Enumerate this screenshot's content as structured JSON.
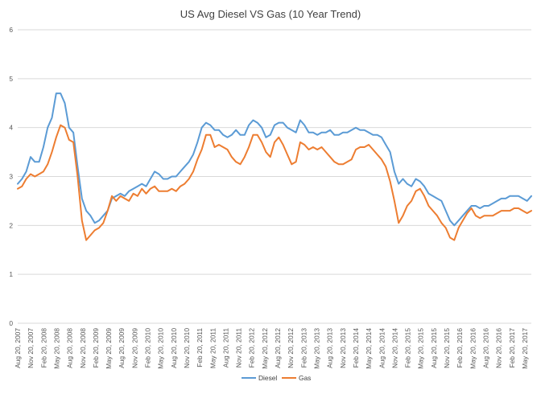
{
  "chart_data": {
    "type": "line",
    "title": "US Avg Diesel VS Gas (10 Year Trend)",
    "xlabel": "",
    "ylabel": "",
    "ylim": [
      0,
      6
    ],
    "yticks": [
      0,
      1,
      2,
      3,
      4,
      5,
      6
    ],
    "grid": "horizontal",
    "legend_position": "bottom",
    "x_tick_labels": [
      "Aug 20, 2007",
      "Nov 20, 2007",
      "Feb 20, 2008",
      "May 20, 2008",
      "Aug 20, 2008",
      "Nov 20, 2008",
      "Feb 20, 2009",
      "May 20, 2009",
      "Aug 20, 2009",
      "Nov 20, 2009",
      "Feb 20, 2010",
      "May 20, 2010",
      "Aug 20, 2010",
      "Nov 20, 2010",
      "Feb 20, 2011",
      "May 20, 2011",
      "Aug 20, 2011",
      "Nov 20, 2011",
      "Feb 20, 2012",
      "May 20, 2012",
      "Aug 20, 2012",
      "Nov 20, 2012",
      "Feb 20, 2013",
      "May 20, 2013",
      "Aug 20, 2013",
      "Nov 20, 2013",
      "Feb 20, 2014",
      "May 20, 2014",
      "Aug 20, 2014",
      "Nov 20, 2014",
      "Feb 20, 2015",
      "May 20, 2015",
      "Aug 20, 2015",
      "Nov 20, 2015",
      "Feb 20, 2016",
      "May 20, 2016",
      "Aug 20, 2016",
      "Nov 20, 2016",
      "Feb 20, 2017",
      "May 20, 2017"
    ],
    "x": [
      "2007-08",
      "2007-09",
      "2007-10",
      "2007-11",
      "2007-12",
      "2008-01",
      "2008-02",
      "2008-03",
      "2008-04",
      "2008-05",
      "2008-06",
      "2008-07",
      "2008-08",
      "2008-09",
      "2008-10",
      "2008-11",
      "2008-12",
      "2009-01",
      "2009-02",
      "2009-03",
      "2009-04",
      "2009-05",
      "2009-06",
      "2009-07",
      "2009-08",
      "2009-09",
      "2009-10",
      "2009-11",
      "2009-12",
      "2010-01",
      "2010-02",
      "2010-03",
      "2010-04",
      "2010-05",
      "2010-06",
      "2010-07",
      "2010-08",
      "2010-09",
      "2010-10",
      "2010-11",
      "2010-12",
      "2011-01",
      "2011-02",
      "2011-03",
      "2011-04",
      "2011-05",
      "2011-06",
      "2011-07",
      "2011-08",
      "2011-09",
      "2011-10",
      "2011-11",
      "2011-12",
      "2012-01",
      "2012-02",
      "2012-03",
      "2012-04",
      "2012-05",
      "2012-06",
      "2012-07",
      "2012-08",
      "2012-09",
      "2012-10",
      "2012-11",
      "2012-12",
      "2013-01",
      "2013-02",
      "2013-03",
      "2013-04",
      "2013-05",
      "2013-06",
      "2013-07",
      "2013-08",
      "2013-09",
      "2013-10",
      "2013-11",
      "2013-12",
      "2014-01",
      "2014-02",
      "2014-03",
      "2014-04",
      "2014-05",
      "2014-06",
      "2014-07",
      "2014-08",
      "2014-09",
      "2014-10",
      "2014-11",
      "2014-12",
      "2015-01",
      "2015-02",
      "2015-03",
      "2015-04",
      "2015-05",
      "2015-06",
      "2015-07",
      "2015-08",
      "2015-09",
      "2015-10",
      "2015-11",
      "2015-12",
      "2016-01",
      "2016-02",
      "2016-03",
      "2016-04",
      "2016-05",
      "2016-06",
      "2016-07",
      "2016-08",
      "2016-09",
      "2016-10",
      "2016-11",
      "2016-12",
      "2017-01",
      "2017-02",
      "2017-03",
      "2017-04",
      "2017-05",
      "2017-06",
      "2017-07",
      "2017-08"
    ],
    "series": [
      {
        "name": "Diesel",
        "color": "#5B9BD5",
        "values": [
          2.85,
          2.95,
          3.1,
          3.4,
          3.3,
          3.3,
          3.6,
          4.0,
          4.2,
          4.7,
          4.7,
          4.5,
          4.0,
          3.9,
          3.2,
          2.55,
          2.3,
          2.2,
          2.05,
          2.1,
          2.2,
          2.3,
          2.55,
          2.6,
          2.65,
          2.6,
          2.7,
          2.75,
          2.8,
          2.85,
          2.8,
          2.95,
          3.1,
          3.05,
          2.95,
          2.95,
          3.0,
          3.0,
          3.1,
          3.2,
          3.3,
          3.45,
          3.7,
          4.0,
          4.1,
          4.05,
          3.95,
          3.95,
          3.85,
          3.8,
          3.85,
          3.95,
          3.85,
          3.85,
          4.05,
          4.15,
          4.1,
          4.0,
          3.8,
          3.85,
          4.05,
          4.1,
          4.1,
          4.0,
          3.95,
          3.9,
          4.15,
          4.05,
          3.9,
          3.9,
          3.85,
          3.9,
          3.9,
          3.95,
          3.85,
          3.85,
          3.9,
          3.9,
          3.95,
          4.0,
          3.95,
          3.95,
          3.9,
          3.85,
          3.85,
          3.8,
          3.65,
          3.5,
          3.1,
          2.85,
          2.95,
          2.85,
          2.8,
          2.95,
          2.9,
          2.8,
          2.65,
          2.6,
          2.55,
          2.5,
          2.3,
          2.1,
          2.0,
          2.1,
          2.2,
          2.3,
          2.4,
          2.4,
          2.35,
          2.4,
          2.4,
          2.45,
          2.5,
          2.55,
          2.55,
          2.6,
          2.6,
          2.6,
          2.55,
          2.5,
          2.6
        ]
      },
      {
        "name": "Gas",
        "color": "#ED7D31",
        "values": [
          2.75,
          2.8,
          2.95,
          3.05,
          3.0,
          3.05,
          3.1,
          3.25,
          3.5,
          3.8,
          4.05,
          4.0,
          3.75,
          3.7,
          3.0,
          2.1,
          1.7,
          1.8,
          1.9,
          1.95,
          2.05,
          2.3,
          2.6,
          2.5,
          2.6,
          2.55,
          2.5,
          2.65,
          2.6,
          2.75,
          2.65,
          2.75,
          2.8,
          2.7,
          2.7,
          2.7,
          2.75,
          2.7,
          2.8,
          2.85,
          2.95,
          3.1,
          3.35,
          3.55,
          3.85,
          3.85,
          3.6,
          3.65,
          3.6,
          3.55,
          3.4,
          3.3,
          3.25,
          3.4,
          3.6,
          3.85,
          3.85,
          3.7,
          3.5,
          3.4,
          3.7,
          3.8,
          3.65,
          3.45,
          3.25,
          3.3,
          3.7,
          3.65,
          3.55,
          3.6,
          3.55,
          3.6,
          3.5,
          3.4,
          3.3,
          3.25,
          3.25,
          3.3,
          3.35,
          3.55,
          3.6,
          3.6,
          3.65,
          3.55,
          3.45,
          3.35,
          3.2,
          2.9,
          2.5,
          2.05,
          2.2,
          2.4,
          2.5,
          2.7,
          2.75,
          2.6,
          2.4,
          2.3,
          2.2,
          2.05,
          1.95,
          1.75,
          1.7,
          1.95,
          2.1,
          2.25,
          2.35,
          2.2,
          2.15,
          2.2,
          2.2,
          2.2,
          2.25,
          2.3,
          2.3,
          2.3,
          2.35,
          2.35,
          2.3,
          2.25,
          2.3
        ]
      }
    ]
  }
}
